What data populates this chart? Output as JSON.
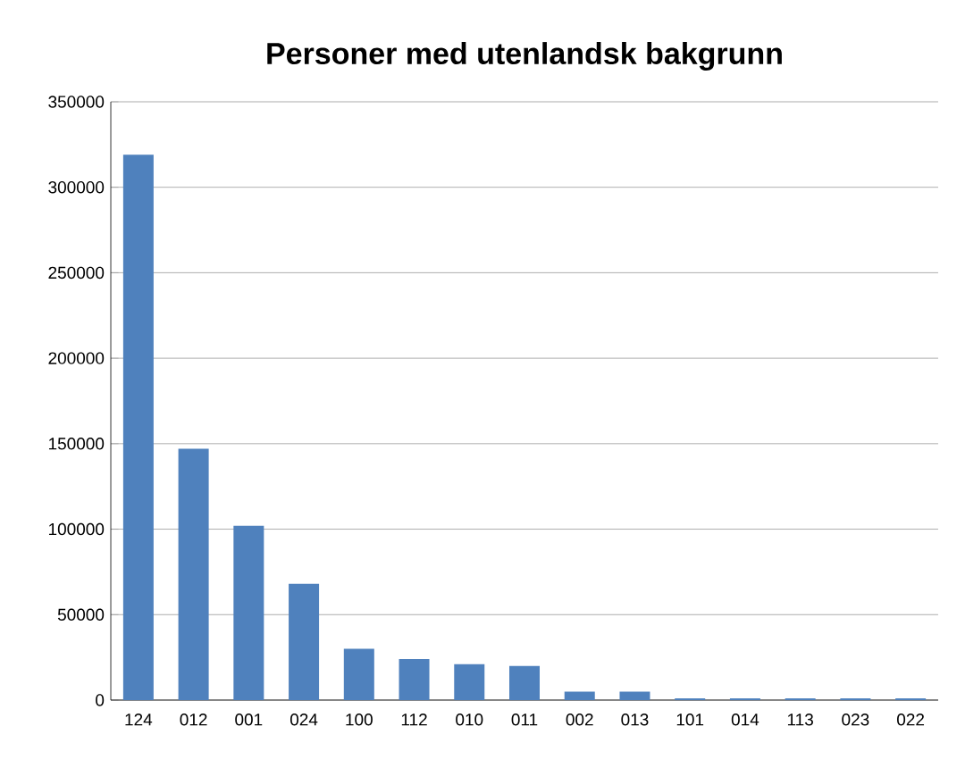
{
  "chart_data": {
    "type": "bar",
    "title": "Personer med utenlandsk bakgrunn",
    "categories": [
      "124",
      "012",
      "001",
      "024",
      "100",
      "112",
      "010",
      "011",
      "002",
      "013",
      "101",
      "014",
      "113",
      "023",
      "022"
    ],
    "values": [
      319000,
      147000,
      102000,
      68000,
      30000,
      24000,
      21000,
      20000,
      5000,
      5000,
      1000,
      1000,
      1000,
      1000,
      1000
    ],
    "color": "#4f81bd",
    "ylim": [
      0,
      350000
    ],
    "yticks": [
      0,
      50000,
      100000,
      150000,
      200000,
      250000,
      300000,
      350000
    ],
    "grid": "y"
  }
}
